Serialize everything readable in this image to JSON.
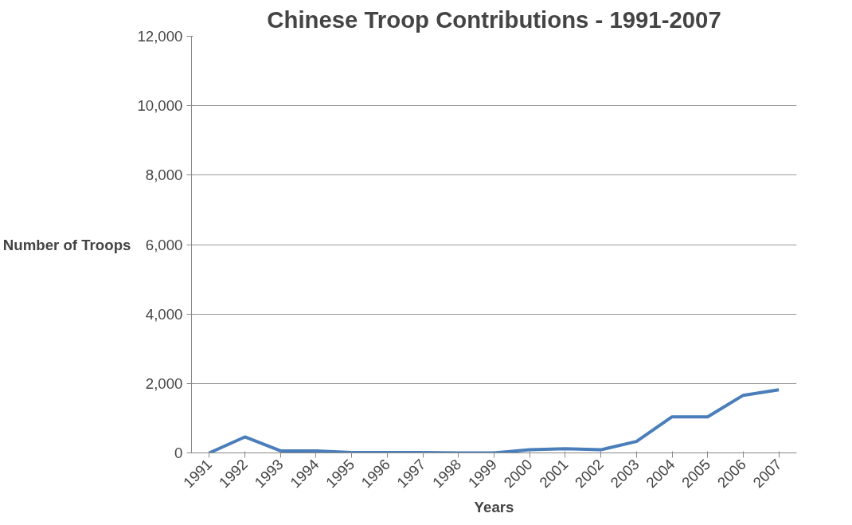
{
  "chart_data": {
    "type": "line",
    "title": "Chinese Troop Contributions - 1991-2007",
    "xlabel": "Years",
    "ylabel": "Number of Troops",
    "categories": [
      "1991",
      "1992",
      "1993",
      "1994",
      "1995",
      "1996",
      "1997",
      "1998",
      "1999",
      "2000",
      "2001",
      "2002",
      "2003",
      "2004",
      "2005",
      "2006",
      "2007"
    ],
    "series": [
      {
        "color": "#4a7ebb",
        "values": [
          0,
          460,
          60,
          60,
          10,
          10,
          10,
          0,
          0,
          90,
          120,
          90,
          330,
          1040,
          1040,
          1660,
          1820
        ]
      }
    ],
    "ylim": [
      0,
      12000
    ],
    "yticks": [
      {
        "value": 0,
        "label": "0"
      },
      {
        "value": 2000,
        "label": "2,000"
      },
      {
        "value": 4000,
        "label": "4,000"
      },
      {
        "value": 6000,
        "label": "6,000"
      },
      {
        "value": 8000,
        "label": "8,000"
      },
      {
        "value": 10000,
        "label": "10,000"
      },
      {
        "value": 12000,
        "label": "12,000"
      }
    ],
    "grid": "y",
    "marker": "none",
    "line_style": "solid"
  }
}
